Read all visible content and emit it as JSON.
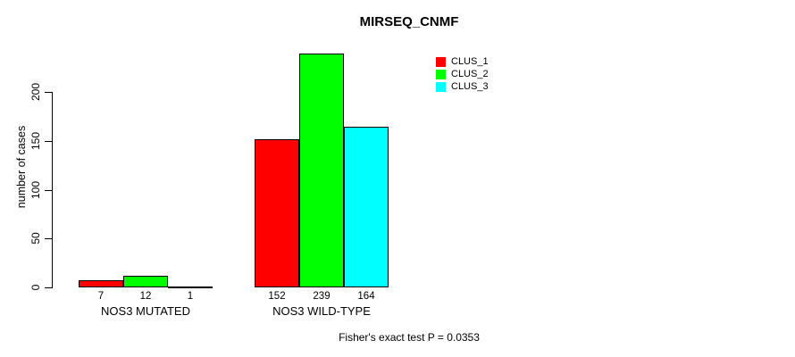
{
  "title": "MIRSEQ_CNMF",
  "ylabel": "number of cases",
  "footer": "Fisher's exact test P = 0.0353",
  "colors": {
    "clus_1": "#ff0000",
    "clus_2": "#00ff00",
    "clus_3": "#00ffff",
    "axis": "#000000",
    "background": "#ffffff"
  },
  "legend": {
    "items": [
      {
        "label": "CLUS_1",
        "color": "#ff0000"
      },
      {
        "label": "CLUS_2",
        "color": "#00ff00"
      },
      {
        "label": "CLUS_3",
        "color": "#00ffff"
      }
    ]
  },
  "chart_data": {
    "type": "bar",
    "title": "MIRSEQ_CNMF",
    "ylabel": "number of cases",
    "xlabel": "",
    "categories": [
      "NOS3 MUTATED",
      "NOS3 WILD-TYPE"
    ],
    "series": [
      {
        "name": "CLUS_1",
        "color": "#ff0000",
        "values": [
          7,
          152
        ]
      },
      {
        "name": "CLUS_2",
        "color": "#00ff00",
        "values": [
          12,
          239
        ]
      },
      {
        "name": "CLUS_3",
        "color": "#00ffff",
        "values": [
          1,
          164
        ]
      }
    ],
    "bar_value_labels": [
      [
        7,
        12,
        1
      ],
      [
        152,
        239,
        164
      ]
    ],
    "yticks": [
      0,
      50,
      100,
      150,
      200
    ],
    "ylim": [
      0,
      240
    ],
    "grid": false,
    "legend_position": "top-right",
    "annotation": "Fisher's exact test P = 0.0353"
  }
}
